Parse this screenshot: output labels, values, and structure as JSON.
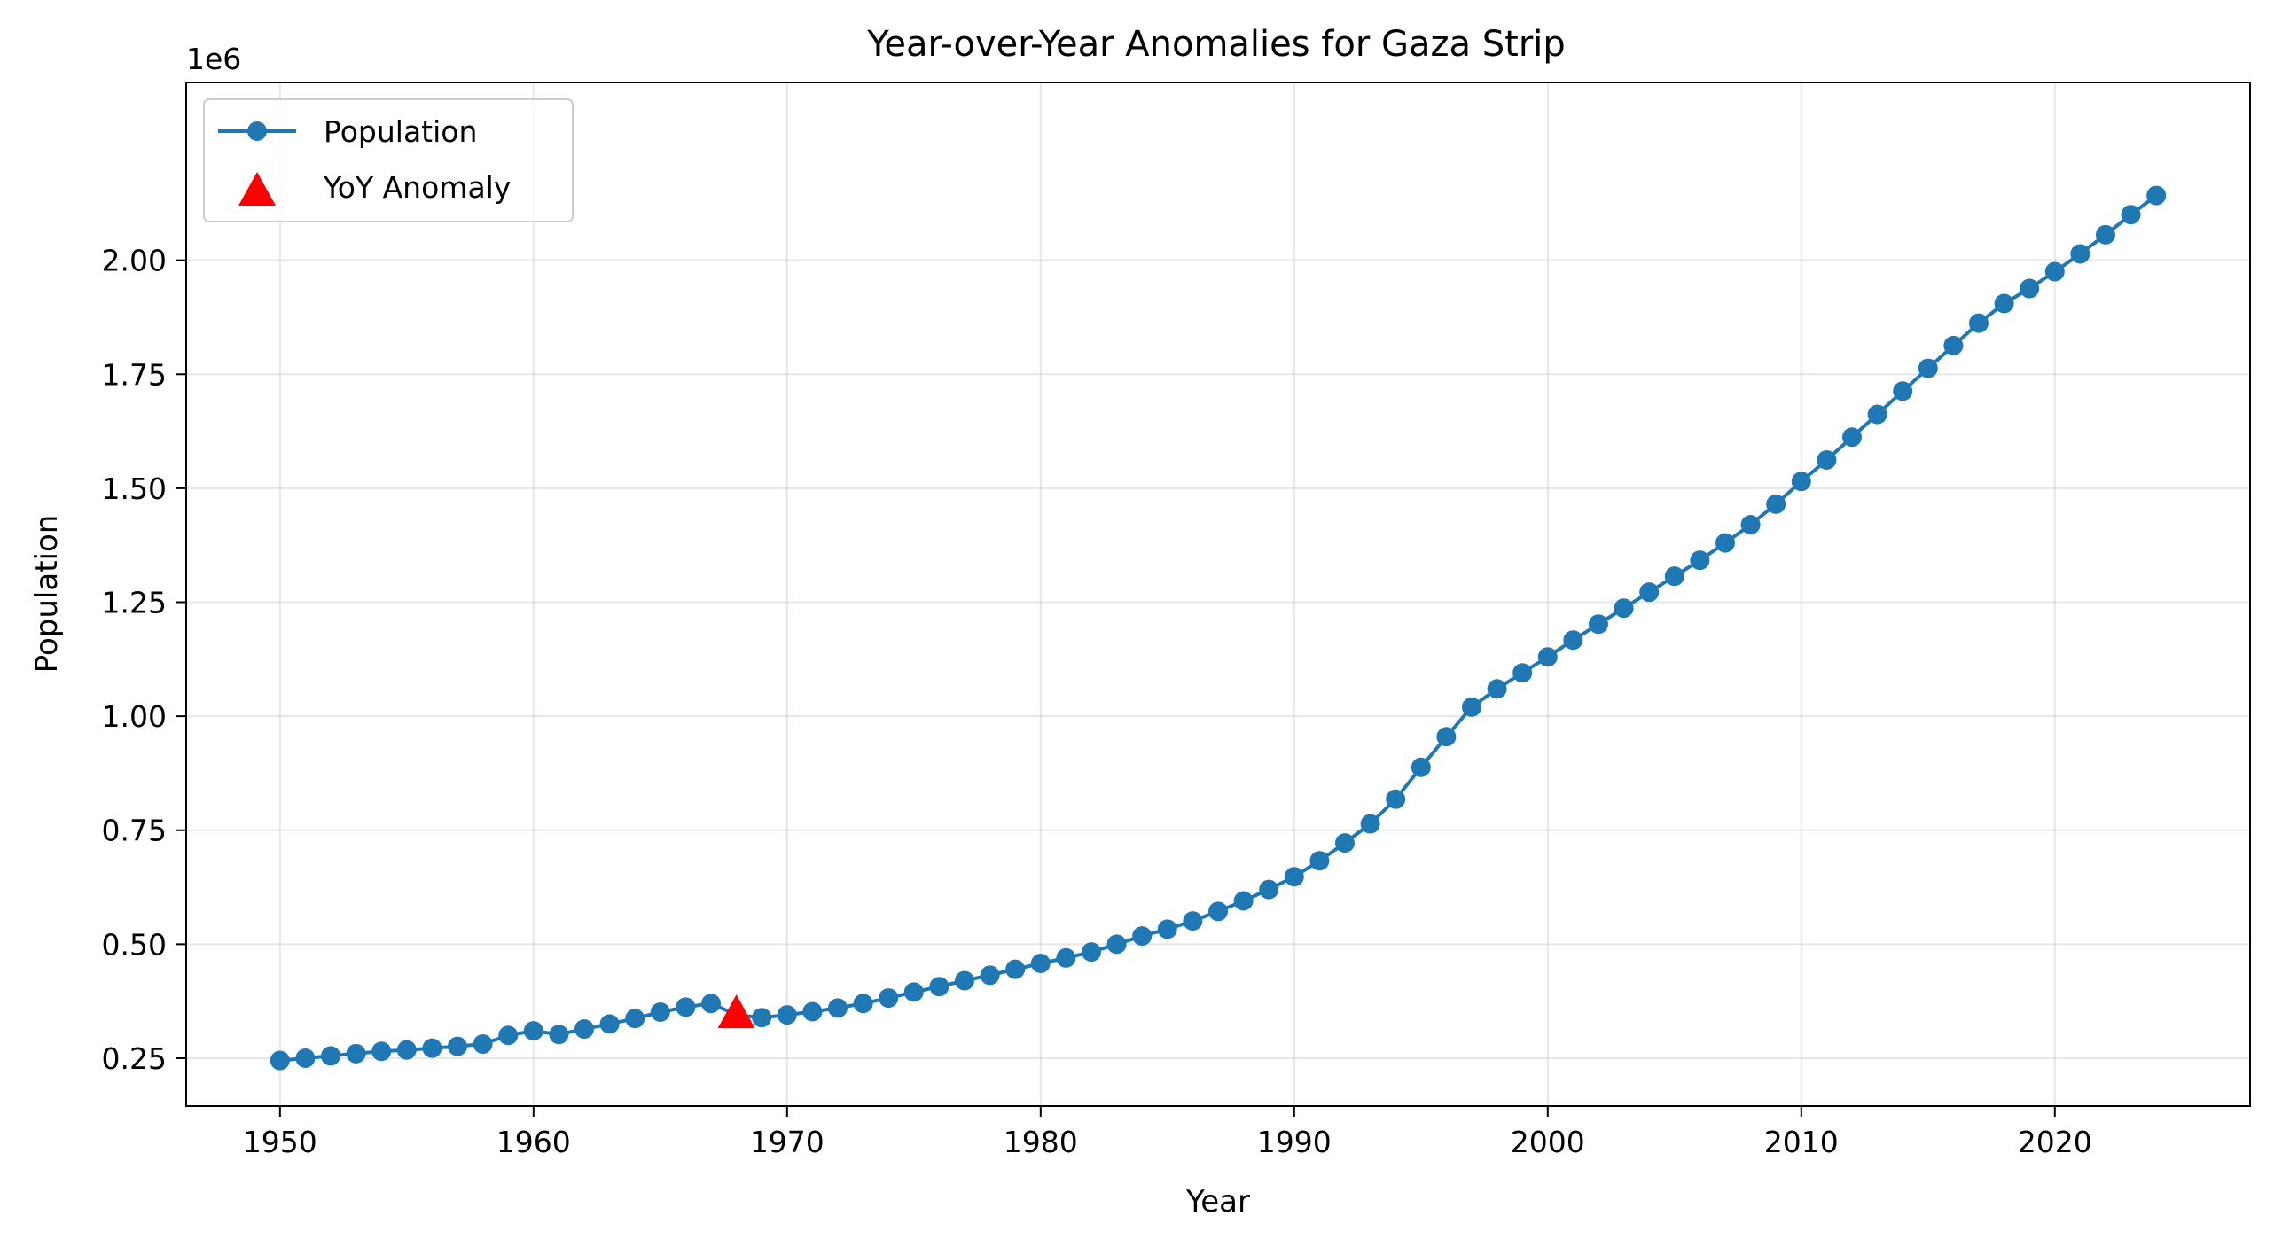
{
  "chart_data": {
    "type": "line",
    "title": "Year-over-Year Anomalies for Gaza Strip",
    "xlabel": "Year",
    "ylabel": "Population",
    "y_offset_label": "1e6",
    "xlim": [
      1946.3,
      2027.7
    ],
    "ylim": [
      145000,
      2390000
    ],
    "xticks": [
      1950,
      1960,
      1970,
      1980,
      1990,
      2000,
      2010,
      2020
    ],
    "yticks": [
      250000,
      500000,
      750000,
      1000000,
      1250000,
      1500000,
      1750000,
      2000000
    ],
    "ytick_labels": [
      "0.25",
      "0.50",
      "0.75",
      "1.00",
      "1.25",
      "1.50",
      "1.75",
      "2.00"
    ],
    "grid": true,
    "legend_position": "upper-left",
    "series": [
      {
        "name": "Population",
        "color": "#1f77b4",
        "marker": "circle",
        "x": [
          1950,
          1951,
          1952,
          1953,
          1954,
          1955,
          1956,
          1957,
          1958,
          1959,
          1960,
          1961,
          1962,
          1963,
          1964,
          1965,
          1966,
          1967,
          1968,
          1969,
          1970,
          1971,
          1972,
          1973,
          1974,
          1975,
          1976,
          1977,
          1978,
          1979,
          1980,
          1981,
          1982,
          1983,
          1984,
          1985,
          1986,
          1987,
          1988,
          1989,
          1990,
          1991,
          1992,
          1993,
          1994,
          1995,
          1996,
          1997,
          1998,
          1999,
          2000,
          2001,
          2002,
          2003,
          2004,
          2005,
          2006,
          2007,
          2008,
          2009,
          2010,
          2011,
          2012,
          2013,
          2014,
          2015,
          2016,
          2017,
          2018,
          2019,
          2020,
          2021,
          2022,
          2023,
          2024
        ],
        "values": [
          245000,
          250000,
          255000,
          260000,
          265000,
          268000,
          272000,
          276000,
          281000,
          300000,
          310000,
          302000,
          314000,
          325000,
          337000,
          351000,
          362000,
          370000,
          345000,
          339000,
          345000,
          352000,
          360000,
          370000,
          382000,
          395000,
          407000,
          420000,
          432000,
          445000,
          458000,
          470000,
          483000,
          500000,
          518000,
          533000,
          551000,
          572000,
          595000,
          620000,
          648000,
          683000,
          722000,
          764000,
          818000,
          888000,
          955000,
          1020000,
          1060000,
          1095000,
          1130000,
          1167000,
          1202000,
          1237000,
          1272000,
          1307000,
          1342000,
          1380000,
          1420000,
          1465000,
          1515000,
          1562000,
          1612000,
          1662000,
          1713000,
          1763000,
          1813000,
          1862000,
          1905000,
          1938000,
          1975000,
          2014000,
          2056000,
          2100000,
          2142000
        ]
      },
      {
        "name": "YoY Anomaly",
        "color": "#ff0000",
        "marker": "triangle",
        "x": [
          1968
        ],
        "values": [
          345000
        ]
      }
    ]
  }
}
